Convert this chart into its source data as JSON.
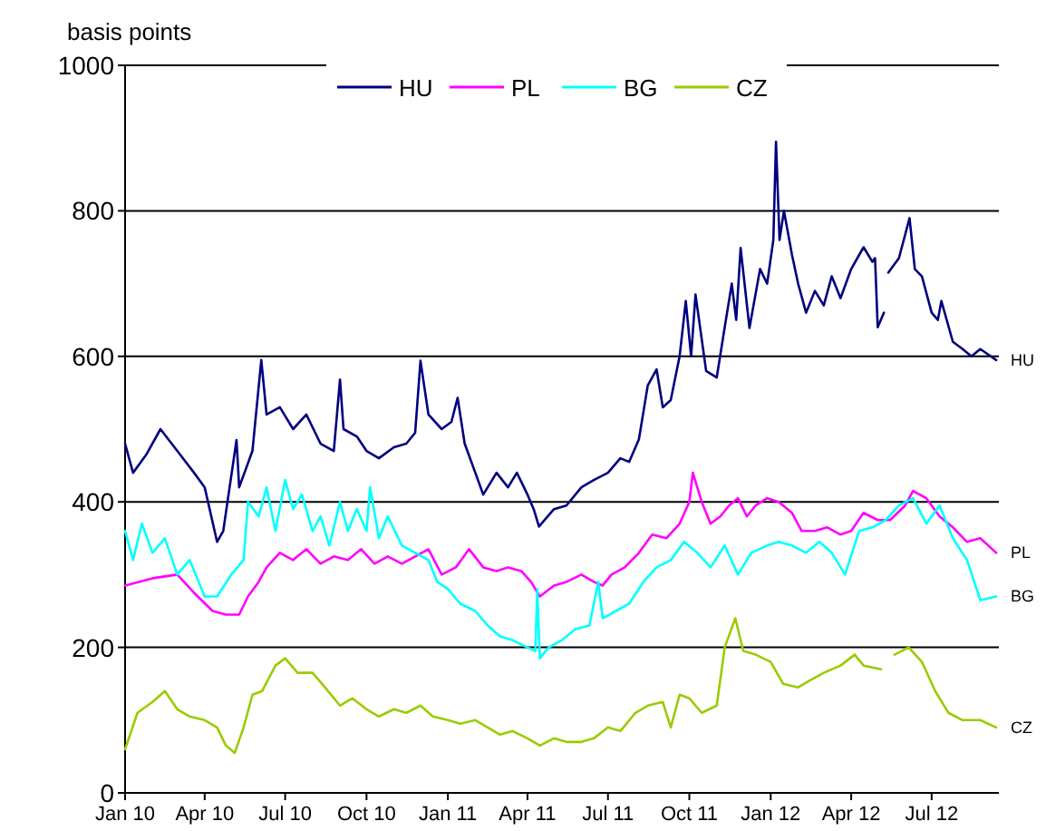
{
  "chart_data": {
    "type": "line",
    "ylabel": "basis points",
    "legend": "top",
    "grid": "y",
    "xlim": [
      "2010-01-01",
      "2012-09-15"
    ],
    "ylim": [
      0,
      1000
    ],
    "yticks": [
      0,
      200,
      400,
      600,
      800,
      1000
    ],
    "xticks": [
      {
        "value": "2010-01-01",
        "label": "Jan 10"
      },
      {
        "value": "2010-04-01",
        "label": "Apr 10"
      },
      {
        "value": "2010-07-01",
        "label": "Jul 10"
      },
      {
        "value": "2010-10-01",
        "label": "Oct 10"
      },
      {
        "value": "2011-01-01",
        "label": "Jan 11"
      },
      {
        "value": "2011-04-01",
        "label": "Apr 11"
      },
      {
        "value": "2011-07-01",
        "label": "Jul 11"
      },
      {
        "value": "2011-10-01",
        "label": "Oct 11"
      },
      {
        "value": "2012-01-01",
        "label": "Jan 12"
      },
      {
        "value": "2012-04-01",
        "label": "Apr 12"
      },
      {
        "value": "2012-07-01",
        "label": "Jul 12"
      }
    ],
    "series": [
      {
        "name": "HU",
        "color": "#000080",
        "x": [
          "2010-01-01",
          "2010-01-10",
          "2010-01-25",
          "2010-02-10",
          "2010-03-01",
          "2010-03-20",
          "2010-04-01",
          "2010-04-15",
          "2010-04-22",
          "2010-05-07",
          "2010-05-10",
          "2010-05-25",
          "2010-06-04",
          "2010-06-10",
          "2010-06-25",
          "2010-07-10",
          "2010-07-25",
          "2010-08-10",
          "2010-08-25",
          "2010-09-01",
          "2010-09-05",
          "2010-09-20",
          "2010-10-01",
          "2010-10-15",
          "2010-11-01",
          "2010-11-15",
          "2010-11-25",
          "2010-12-01",
          "2010-12-10",
          "2010-12-25",
          "2011-01-05",
          "2011-01-12",
          "2011-01-20",
          "2011-02-01",
          "2011-02-10",
          "2011-02-25",
          "2011-03-10",
          "2011-03-20",
          "2011-04-01",
          "2011-04-08",
          "2011-04-14",
          "2011-05-01",
          "2011-05-15",
          "2011-06-01",
          "2011-06-15",
          "2011-07-01",
          "2011-07-15",
          "2011-07-25",
          "2011-08-05",
          "2011-08-15",
          "2011-08-25",
          "2011-09-01",
          "2011-09-10",
          "2011-09-20",
          "2011-09-27",
          "2011-10-03",
          "2011-10-08",
          "2011-10-20",
          "2011-11-01",
          "2011-11-10",
          "2011-11-18",
          "2011-11-23",
          "2011-11-28",
          "2011-12-08",
          "2011-12-20",
          "2011-12-28",
          "2012-01-04",
          "2012-01-07",
          "2012-01-11",
          "2012-01-16",
          "2012-01-25",
          "2012-02-01",
          "2012-02-10",
          "2012-02-20",
          "2012-03-01",
          "2012-03-10",
          "2012-03-20",
          "2012-04-01",
          "2012-04-15",
          "2012-04-25",
          "2012-04-28",
          "2012-05-01",
          "2012-05-08",
          "2012-05-10",
          "2012-05-13",
          "2012-05-25",
          "2012-06-06",
          "2012-06-12",
          "2012-06-20",
          "2012-07-01",
          "2012-07-08",
          "2012-07-12",
          "2012-07-25",
          "2012-08-05",
          "2012-08-15",
          "2012-08-25",
          "2012-09-12"
        ],
        "values": [
          480,
          440,
          465,
          500,
          470,
          440,
          420,
          345,
          360,
          485,
          420,
          470,
          595,
          520,
          530,
          500,
          520,
          480,
          470,
          568,
          500,
          490,
          470,
          460,
          475,
          480,
          495,
          594,
          520,
          500,
          510,
          543,
          480,
          440,
          410,
          440,
          420,
          440,
          410,
          390,
          366,
          390,
          395,
          420,
          430,
          440,
          460,
          455,
          486,
          560,
          582,
          530,
          540,
          600,
          676,
          600,
          685,
          580,
          571,
          640,
          700,
          650,
          749,
          639,
          720,
          700,
          760,
          895,
          760,
          800,
          740,
          700,
          660,
          690,
          670,
          710,
          680,
          720,
          750,
          730,
          735,
          640,
          660,
          null,
          715,
          735,
          790,
          720,
          710,
          660,
          650,
          676,
          620,
          610,
          600,
          610,
          595
        ]
      },
      {
        "name": "PL",
        "color": "#ff00ff",
        "x": [
          "2010-01-01",
          "2010-02-01",
          "2010-03-01",
          "2010-03-20",
          "2010-04-10",
          "2010-04-25",
          "2010-05-10",
          "2010-05-20",
          "2010-06-01",
          "2010-06-10",
          "2010-06-25",
          "2010-07-10",
          "2010-07-25",
          "2010-08-10",
          "2010-08-25",
          "2010-09-10",
          "2010-09-25",
          "2010-10-10",
          "2010-10-25",
          "2010-11-10",
          "2010-11-25",
          "2010-12-10",
          "2010-12-25",
          "2011-01-10",
          "2011-01-25",
          "2011-02-10",
          "2011-02-25",
          "2011-03-10",
          "2011-03-25",
          "2011-04-05",
          "2011-04-15",
          "2011-05-01",
          "2011-05-15",
          "2011-06-01",
          "2011-06-15",
          "2011-06-25",
          "2011-07-05",
          "2011-07-20",
          "2011-08-05",
          "2011-08-20",
          "2011-09-05",
          "2011-09-20",
          "2011-10-01",
          "2011-10-05",
          "2011-10-15",
          "2011-10-25",
          "2011-11-05",
          "2011-11-15",
          "2011-11-25",
          "2011-12-05",
          "2011-12-15",
          "2011-12-28",
          "2012-01-10",
          "2012-01-25",
          "2012-02-05",
          "2012-02-20",
          "2012-03-05",
          "2012-03-20",
          "2012-04-01",
          "2012-04-15",
          "2012-05-01",
          "2012-05-15",
          "2012-06-01",
          "2012-06-10",
          "2012-06-25",
          "2012-07-10",
          "2012-07-25",
          "2012-08-10",
          "2012-08-25",
          "2012-09-12"
        ],
        "values": [
          285,
          295,
          300,
          275,
          250,
          245,
          245,
          270,
          290,
          310,
          330,
          320,
          335,
          315,
          325,
          320,
          335,
          315,
          325,
          315,
          325,
          335,
          300,
          310,
          335,
          310,
          305,
          310,
          305,
          290,
          270,
          285,
          290,
          300,
          290,
          285,
          300,
          310,
          330,
          355,
          350,
          370,
          400,
          440,
          400,
          370,
          380,
          395,
          405,
          380,
          395,
          405,
          400,
          385,
          360,
          360,
          365,
          355,
          360,
          385,
          375,
          375,
          395,
          415,
          405,
          380,
          365,
          345,
          350,
          330
        ]
      },
      {
        "name": "BG",
        "color": "#00ffff",
        "x": [
          "2010-01-01",
          "2010-01-10",
          "2010-01-20",
          "2010-02-01",
          "2010-02-15",
          "2010-03-01",
          "2010-03-15",
          "2010-04-01",
          "2010-04-15",
          "2010-05-01",
          "2010-05-15",
          "2010-05-20",
          "2010-06-01",
          "2010-06-10",
          "2010-06-20",
          "2010-07-01",
          "2010-07-10",
          "2010-07-20",
          "2010-08-01",
          "2010-08-10",
          "2010-08-20",
          "2010-09-01",
          "2010-09-10",
          "2010-09-20",
          "2010-10-01",
          "2010-10-05",
          "2010-10-15",
          "2010-10-25",
          "2010-11-10",
          "2010-11-25",
          "2010-12-10",
          "2010-12-20",
          "2011-01-01",
          "2011-01-15",
          "2011-02-01",
          "2011-02-15",
          "2011-03-01",
          "2011-03-15",
          "2011-04-01",
          "2011-04-10",
          "2011-04-12",
          "2011-04-15",
          "2011-04-25",
          "2011-05-10",
          "2011-05-25",
          "2011-06-10",
          "2011-06-20",
          "2011-06-25",
          "2011-07-10",
          "2011-07-25",
          "2011-08-10",
          "2011-08-25",
          "2011-09-10",
          "2011-09-25",
          "2011-10-10",
          "2011-10-25",
          "2011-11-10",
          "2011-11-25",
          "2011-12-10",
          "2011-12-28",
          "2012-01-10",
          "2012-01-25",
          "2012-02-10",
          "2012-02-25",
          "2012-03-10",
          "2012-03-25",
          "2012-04-10",
          "2012-04-25",
          "2012-05-10",
          "2012-05-25",
          "2012-06-10",
          "2012-06-25",
          "2012-07-10",
          "2012-07-25",
          "2012-08-10",
          "2012-08-25",
          "2012-09-12"
        ],
        "values": [
          360,
          320,
          370,
          330,
          350,
          300,
          320,
          270,
          270,
          300,
          320,
          400,
          380,
          420,
          360,
          430,
          390,
          410,
          360,
          380,
          340,
          400,
          360,
          390,
          360,
          420,
          350,
          380,
          340,
          330,
          320,
          290,
          280,
          260,
          250,
          230,
          215,
          210,
          200,
          195,
          280,
          185,
          200,
          210,
          225,
          230,
          290,
          240,
          250,
          260,
          290,
          310,
          320,
          345,
          330,
          310,
          340,
          300,
          330,
          340,
          345,
          340,
          330,
          345,
          330,
          300,
          360,
          365,
          375,
          395,
          405,
          370,
          395,
          350,
          320,
          265,
          270
        ]
      },
      {
        "name": "CZ",
        "color": "#99cc00",
        "x": [
          "2010-01-01",
          "2010-01-15",
          "2010-02-01",
          "2010-02-15",
          "2010-03-01",
          "2010-03-15",
          "2010-04-01",
          "2010-04-15",
          "2010-04-25",
          "2010-05-05",
          "2010-05-15",
          "2010-05-25",
          "2010-06-05",
          "2010-06-20",
          "2010-07-01",
          "2010-07-15",
          "2010-08-01",
          "2010-08-15",
          "2010-09-01",
          "2010-09-15",
          "2010-10-01",
          "2010-10-15",
          "2010-11-01",
          "2010-11-15",
          "2010-12-01",
          "2010-12-15",
          "2011-01-01",
          "2011-01-15",
          "2011-02-01",
          "2011-02-15",
          "2011-03-01",
          "2011-03-15",
          "2011-04-01",
          "2011-04-15",
          "2011-05-01",
          "2011-05-15",
          "2011-06-01",
          "2011-06-15",
          "2011-07-01",
          "2011-07-15",
          "2011-08-01",
          "2011-08-15",
          "2011-09-01",
          "2011-09-10",
          "2011-09-20",
          "2011-10-01",
          "2011-10-15",
          "2011-11-01",
          "2011-11-10",
          "2011-11-22",
          "2011-12-01",
          "2011-12-15",
          "2012-01-01",
          "2012-01-15",
          "2012-02-01",
          "2012-02-15",
          "2012-03-01",
          "2012-03-20",
          "2012-04-05",
          "2012-04-15",
          "2012-05-05",
          "2012-05-10",
          "2012-05-20",
          "2012-06-05",
          "2012-06-20",
          "2012-07-05",
          "2012-07-20",
          "2012-08-05",
          "2012-08-25",
          "2012-09-12"
        ],
        "values": [
          60,
          110,
          125,
          140,
          115,
          105,
          100,
          90,
          65,
          55,
          90,
          135,
          140,
          175,
          185,
          165,
          165,
          145,
          120,
          130,
          115,
          105,
          115,
          110,
          120,
          105,
          100,
          95,
          100,
          90,
          80,
          85,
          75,
          65,
          75,
          70,
          70,
          75,
          90,
          85,
          110,
          120,
          125,
          90,
          135,
          130,
          110,
          120,
          200,
          240,
          195,
          190,
          180,
          150,
          145,
          155,
          165,
          175,
          190,
          175,
          170,
          null,
          190,
          200,
          180,
          140,
          110,
          100,
          100,
          90
        ]
      }
    ]
  }
}
